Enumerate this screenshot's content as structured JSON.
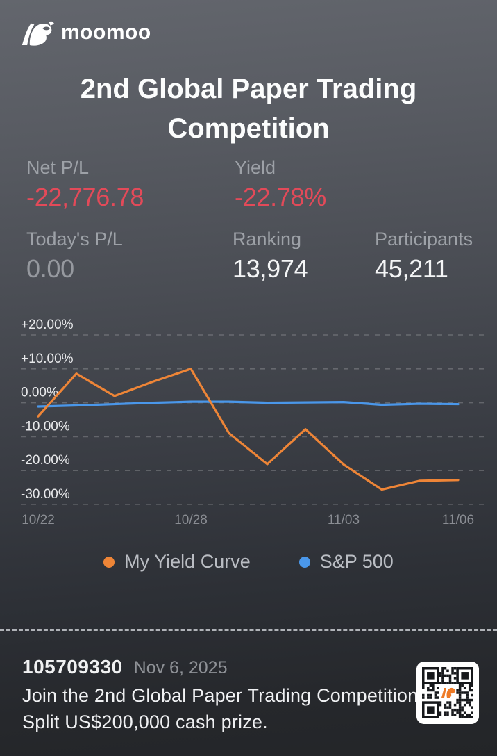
{
  "app": {
    "wordmark": "moomoo"
  },
  "title": "2nd Global Paper Trading Competition",
  "stats": {
    "net_pl": {
      "label": "Net P/L",
      "value": "-22,776.78"
    },
    "yield": {
      "label": "Yield",
      "value": "-22.78%"
    },
    "today_pl": {
      "label": "Today's P/L",
      "value": "0.00"
    },
    "ranking": {
      "label": "Ranking",
      "value": "13,974"
    },
    "participants": {
      "label": "Participants",
      "value": "45,211"
    }
  },
  "chart_data": {
    "type": "line",
    "x": [
      "10/22",
      "10/23",
      "10/24",
      "10/27",
      "10/28",
      "10/29",
      "10/30",
      "10/31",
      "11/03",
      "11/04",
      "11/05",
      "11/06"
    ],
    "x_ticks": [
      {
        "index": 0,
        "label": "10/22"
      },
      {
        "index": 4,
        "label": "10/28"
      },
      {
        "index": 8,
        "label": "11/03"
      },
      {
        "index": 11,
        "label": "11/06"
      }
    ],
    "series": [
      {
        "name": "My Yield Curve",
        "color": "#ee8537",
        "values": [
          -4.0,
          8.6,
          2.0,
          6.2,
          10.0,
          -9.0,
          -18.1,
          -7.8,
          -18.2,
          -25.6,
          -23.0,
          -22.78
        ]
      },
      {
        "name": "S&P 500",
        "color": "#4a97ea",
        "values": [
          -1.1,
          -0.8,
          -0.4,
          0.0,
          0.3,
          0.3,
          0.0,
          0.1,
          0.2,
          -0.6,
          -0.3,
          -0.4
        ]
      }
    ],
    "y_ticks": [
      20,
      10,
      0,
      -10,
      -20,
      -30
    ],
    "y_tick_labels": [
      "+20.00%",
      "+10.00%",
      "0.00%",
      "-10.00%",
      "-20.00%",
      "-30.00%"
    ],
    "ylim": [
      -33,
      23
    ],
    "grid": "dashed-horizontal",
    "legend_position": "bottom",
    "title": "",
    "xlabel": "",
    "ylabel": ""
  },
  "footer": {
    "user_id": "105709330",
    "date": "Nov 6, 2025",
    "promo_line1": "Join the 2nd Global Paper Trading Competition",
    "promo_line2": "Split US$200,000 cash prize.",
    "qr": "moomoo-app-qr-code"
  },
  "colors": {
    "negative_red": "#e34a59",
    "my_yield_orange": "#ee8537",
    "sp500_blue": "#4a97ea",
    "label_gray": "#9da1a7",
    "axis_label": "#8a8d93",
    "background_top": "#63666d",
    "background_bottom": "#232528"
  }
}
